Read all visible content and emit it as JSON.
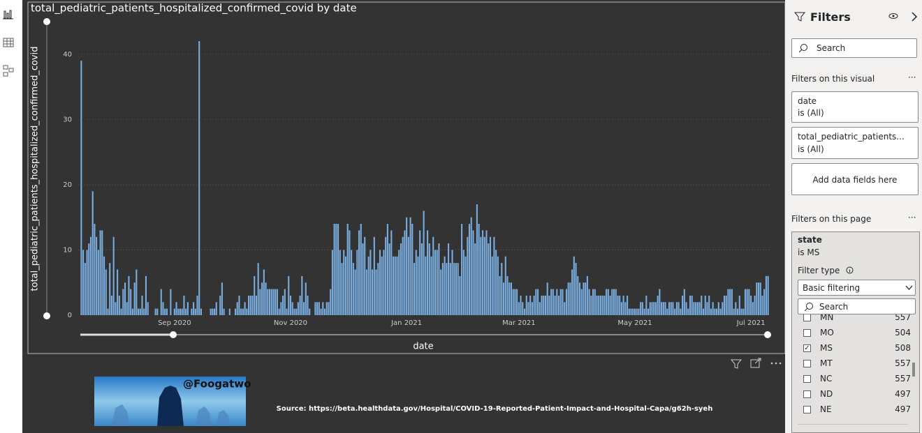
{
  "chart_data": {
    "type": "bar",
    "title": "total_pediatric_patients_hospitalized_confirmed_covid by date",
    "x_label": "date",
    "y_label": "total_pediatric_patients_hospitalized_confirmed_covid",
    "color": "#7aaee0",
    "ylim": [
      0,
      45
    ],
    "yticks": [
      0,
      10,
      20,
      30,
      40
    ],
    "grid": true,
    "categories": [
      null,
      null,
      null,
      null,
      null,
      null,
      null,
      null,
      null,
      null,
      null,
      null,
      null,
      null,
      null,
      null,
      null,
      null,
      null,
      null,
      null,
      null,
      null,
      null,
      null,
      null,
      null,
      null,
      null,
      null,
      null,
      null,
      null,
      null,
      null,
      null,
      null,
      null,
      null,
      null,
      null,
      null,
      null,
      null,
      null,
      null,
      null,
      null,
      null,
      "Sep 2020",
      null,
      null,
      null,
      null,
      null,
      null,
      null,
      null,
      null,
      null,
      null,
      null,
      null,
      null,
      null,
      null,
      null,
      null,
      null,
      null,
      null,
      null,
      null,
      null,
      null,
      null,
      null,
      null,
      null,
      null,
      null,
      null,
      null,
      null,
      null,
      null,
      null,
      null,
      null,
      null,
      null,
      null,
      null,
      null,
      null,
      null,
      null,
      null,
      null,
      null,
      null,
      null,
      null,
      null,
      null,
      null,
      null,
      null,
      null,
      null,
      "Nov 2020",
      null,
      null,
      null,
      null,
      null,
      null,
      null,
      null,
      null,
      null,
      null,
      null,
      null,
      null,
      null,
      null,
      null,
      null,
      null,
      null,
      null,
      null,
      null,
      null,
      null,
      null,
      null,
      null,
      null,
      null,
      null,
      null,
      null,
      null,
      null,
      null,
      null,
      null,
      null,
      null,
      null,
      null,
      null,
      null,
      null,
      null,
      null,
      null,
      null,
      null,
      null,
      null,
      null,
      null,
      null,
      null,
      null,
      null,
      null,
      null,
      "Jan 2021",
      null,
      null,
      null,
      null,
      null,
      null,
      null,
      null,
      null,
      null,
      null,
      null,
      null,
      null,
      null,
      null,
      null,
      null,
      null,
      null,
      null,
      null,
      null,
      null,
      null,
      null,
      null,
      null,
      null,
      null,
      null,
      null,
      null,
      null,
      null,
      null,
      null,
      null,
      null,
      null,
      null,
      null,
      null,
      null,
      null,
      null,
      null,
      null,
      null,
      null,
      null,
      null,
      null,
      null,
      null,
      null,
      null,
      null,
      "Mar 2021",
      null,
      null,
      null,
      null,
      null,
      null,
      null,
      null,
      null,
      null,
      null,
      null,
      null,
      null,
      null,
      null,
      null,
      null,
      null,
      null,
      null,
      null,
      null,
      null,
      null,
      null,
      null,
      null,
      null,
      null,
      null,
      null,
      null,
      null,
      null,
      null,
      null,
      null,
      null,
      null,
      null,
      null,
      null,
      null,
      null,
      null,
      null,
      null,
      null,
      null,
      null,
      null,
      null,
      null,
      null,
      null,
      null,
      null,
      null,
      null,
      "May 2021",
      null,
      null,
      null,
      null,
      null,
      null,
      null,
      null,
      null,
      null,
      null,
      null,
      null,
      null,
      null,
      null,
      null,
      null,
      null,
      null,
      null,
      null,
      null,
      null,
      null,
      null,
      null,
      null,
      null,
      null,
      null,
      null,
      null,
      null,
      null,
      null,
      null,
      null,
      null,
      null,
      null,
      null,
      null,
      null,
      null,
      null,
      null,
      null,
      null,
      null,
      null,
      null,
      null,
      null,
      null,
      null,
      null,
      null,
      null,
      null,
      "Jul 2021",
      null,
      null,
      null,
      null,
      null,
      null,
      null,
      null,
      null
    ],
    "values": [
      39,
      10,
      8,
      10,
      11,
      12,
      19,
      14,
      12,
      10,
      13,
      13,
      9,
      7,
      1,
      8,
      3,
      12,
      2,
      7,
      3,
      1,
      4,
      5,
      2,
      6,
      4,
      1,
      5,
      7,
      1,
      1,
      3,
      1,
      6,
      2,
      0,
      0,
      0,
      1,
      1,
      0,
      4,
      2,
      1,
      1,
      0,
      4,
      0,
      1,
      2,
      1,
      1,
      1,
      3,
      1,
      2,
      0,
      1,
      2,
      1,
      3,
      42,
      1,
      0,
      0,
      0,
      0,
      1,
      1,
      1,
      2,
      0,
      3,
      5,
      1,
      0,
      0,
      1,
      0,
      0,
      1,
      2,
      3,
      1,
      1,
      2,
      1,
      3,
      3,
      3,
      6,
      3,
      8,
      4,
      5,
      7,
      5,
      4,
      4,
      4,
      4,
      4,
      4,
      1,
      2,
      3,
      4,
      1,
      6,
      3,
      2,
      1,
      1,
      2,
      3,
      6,
      2,
      5,
      3,
      1,
      0,
      0,
      2,
      2,
      2,
      1,
      2,
      1,
      2,
      2,
      4,
      10,
      14,
      14,
      14,
      10,
      8,
      10,
      9,
      14,
      13,
      10,
      8,
      7,
      10,
      13,
      14,
      11,
      12,
      7,
      9,
      10,
      7,
      12,
      7,
      8,
      10,
      9,
      10,
      12,
      14,
      11,
      13,
      9,
      9,
      9,
      10,
      11,
      12,
      13,
      15,
      12,
      15,
      14,
      8,
      10,
      9,
      13,
      11,
      16,
      9,
      13,
      11,
      9,
      12,
      10,
      10,
      11,
      7,
      8,
      9,
      8,
      11,
      8,
      10,
      8,
      8,
      8,
      6,
      14,
      10,
      9,
      12,
      14,
      15,
      13,
      11,
      17,
      14,
      12,
      13,
      12,
      13,
      11,
      12,
      9,
      12,
      10,
      9,
      6,
      8,
      5,
      9,
      6,
      5,
      5,
      4,
      4,
      4,
      2,
      3,
      2,
      1,
      3,
      2,
      3,
      2,
      3,
      4,
      4,
      2,
      3,
      3,
      3,
      5,
      3,
      4,
      4,
      3,
      4,
      3,
      4,
      4,
      2,
      4,
      5,
      5,
      7,
      9,
      8,
      6,
      5,
      4,
      5,
      5,
      6,
      4,
      3,
      4,
      4,
      3,
      3,
      3,
      3,
      3,
      4,
      4,
      3,
      4,
      4,
      4,
      3,
      3,
      2,
      3,
      2,
      3,
      1,
      1,
      1,
      1,
      1,
      1,
      2,
      2,
      1,
      3,
      1,
      2,
      2,
      2,
      2,
      3,
      4,
      2,
      2,
      2,
      1,
      2,
      2,
      2,
      1,
      2,
      2,
      1,
      3,
      4,
      2,
      1,
      3,
      3,
      2,
      2,
      2,
      2,
      3,
      1,
      3,
      2,
      3,
      1,
      2,
      1,
      1,
      2,
      1,
      2,
      3,
      3,
      4,
      4,
      4,
      1,
      2,
      1,
      3,
      1,
      1,
      4,
      4,
      4,
      3,
      2,
      3,
      5,
      5,
      5,
      3,
      4,
      6,
      6
    ]
  },
  "image_caption": "@Foogatwo",
  "source": "Source: https://beta.healthdata.gov/Hospital/COVID-19-Reported-Patient-Impact-and-Hospital-Capa/g62h-syeh",
  "filters_pane": {
    "title": "Filters",
    "search": "Search",
    "visual_section": "Filters on this visual",
    "visual_filters": [
      {
        "field": "date",
        "state": "is (All)"
      },
      {
        "field": "total_pediatric_patients...",
        "state": "is (All)"
      }
    ],
    "add_fields": "Add data fields here",
    "page_section": "Filters on this page",
    "page_filter": {
      "field": "state",
      "state": "is MS",
      "filter_type_label": "Filter type",
      "filter_type": "Basic filtering",
      "search": "Search",
      "items": [
        {
          "label": "MN",
          "count": 557,
          "checked": false
        },
        {
          "label": "MO",
          "count": 504,
          "checked": false
        },
        {
          "label": "MS",
          "count": 508,
          "checked": true
        },
        {
          "label": "MT",
          "count": 557,
          "checked": false
        },
        {
          "label": "NC",
          "count": 557,
          "checked": false
        },
        {
          "label": "ND",
          "count": 497,
          "checked": false
        },
        {
          "label": "NE",
          "count": 497,
          "checked": false
        }
      ]
    }
  }
}
